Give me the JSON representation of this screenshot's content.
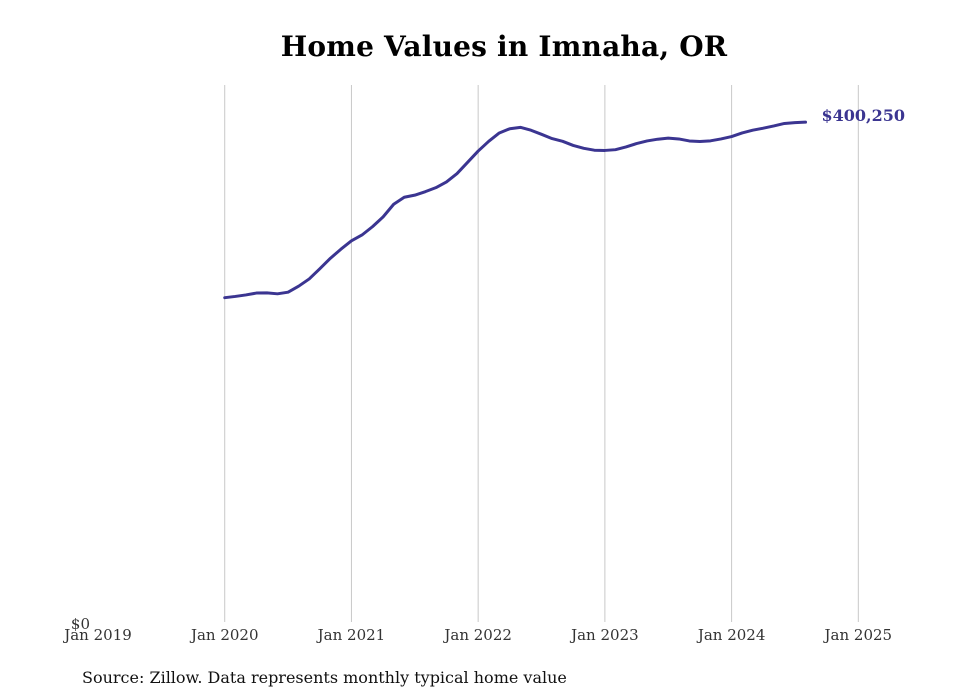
{
  "chart_data": {
    "type": "line",
    "title": "Home Values in Imnaha, OR",
    "source": "Source: Zillow. Data represents monthly typical home value",
    "xlabel": "",
    "ylabel": "",
    "y_tick_label": "$0",
    "xlim": [
      "2019-01",
      "2025-04"
    ],
    "ylim": [
      0,
      430000
    ],
    "grid": "vertical",
    "line_color": "#3b3591",
    "end_label": "$400,250",
    "x_ticks": [
      {
        "date": "2019-01",
        "label": "Jan 2019"
      },
      {
        "date": "2020-01",
        "label": "Jan 2020"
      },
      {
        "date": "2021-01",
        "label": "Jan 2021"
      },
      {
        "date": "2022-01",
        "label": "Jan 2022"
      },
      {
        "date": "2023-01",
        "label": "Jan 2023"
      },
      {
        "date": "2024-01",
        "label": "Jan 2024"
      },
      {
        "date": "2025-01",
        "label": "Jan 2025"
      }
    ],
    "series": [
      {
        "points": [
          [
            "2020-01",
            259700
          ],
          [
            "2020-02",
            260700
          ],
          [
            "2020-03",
            261900
          ],
          [
            "2020-04",
            263400
          ],
          [
            "2020-05",
            263500
          ],
          [
            "2020-06",
            262800
          ],
          [
            "2020-07",
            264100
          ],
          [
            "2020-08",
            268900
          ],
          [
            "2020-09",
            274700
          ],
          [
            "2020-10",
            282800
          ],
          [
            "2020-11",
            291200
          ],
          [
            "2020-12",
            298500
          ],
          [
            "2021-01",
            305200
          ],
          [
            "2021-02",
            309900
          ],
          [
            "2021-03",
            316600
          ],
          [
            "2021-04",
            324400
          ],
          [
            "2021-05",
            334500
          ],
          [
            "2021-06",
            340100
          ],
          [
            "2021-07",
            341800
          ],
          [
            "2021-08",
            344600
          ],
          [
            "2021-09",
            347800
          ],
          [
            "2021-10",
            352400
          ],
          [
            "2021-11",
            359100
          ],
          [
            "2021-12",
            368100
          ],
          [
            "2022-01",
            377100
          ],
          [
            "2022-02",
            384900
          ],
          [
            "2022-03",
            391600
          ],
          [
            "2022-04",
            395000
          ],
          [
            "2022-05",
            396100
          ],
          [
            "2022-06",
            393800
          ],
          [
            "2022-07",
            390500
          ],
          [
            "2022-08",
            387100
          ],
          [
            "2022-09",
            384900
          ],
          [
            "2022-10",
            381600
          ],
          [
            "2022-11",
            379300
          ],
          [
            "2022-12",
            377800
          ],
          [
            "2023-01",
            377600
          ],
          [
            "2023-02",
            378200
          ],
          [
            "2023-03",
            380400
          ],
          [
            "2023-04",
            383100
          ],
          [
            "2023-05",
            385200
          ],
          [
            "2023-06",
            386600
          ],
          [
            "2023-07",
            387500
          ],
          [
            "2023-08",
            386800
          ],
          [
            "2023-09",
            385200
          ],
          [
            "2023-10",
            384800
          ],
          [
            "2023-11",
            385300
          ],
          [
            "2023-12",
            386800
          ],
          [
            "2024-01",
            388700
          ],
          [
            "2024-02",
            391600
          ],
          [
            "2024-03",
            393800
          ],
          [
            "2024-04",
            395400
          ],
          [
            "2024-05",
            397200
          ],
          [
            "2024-06",
            399200
          ],
          [
            "2024-07",
            399900
          ],
          [
            "2024-08",
            400250
          ]
        ]
      }
    ]
  }
}
